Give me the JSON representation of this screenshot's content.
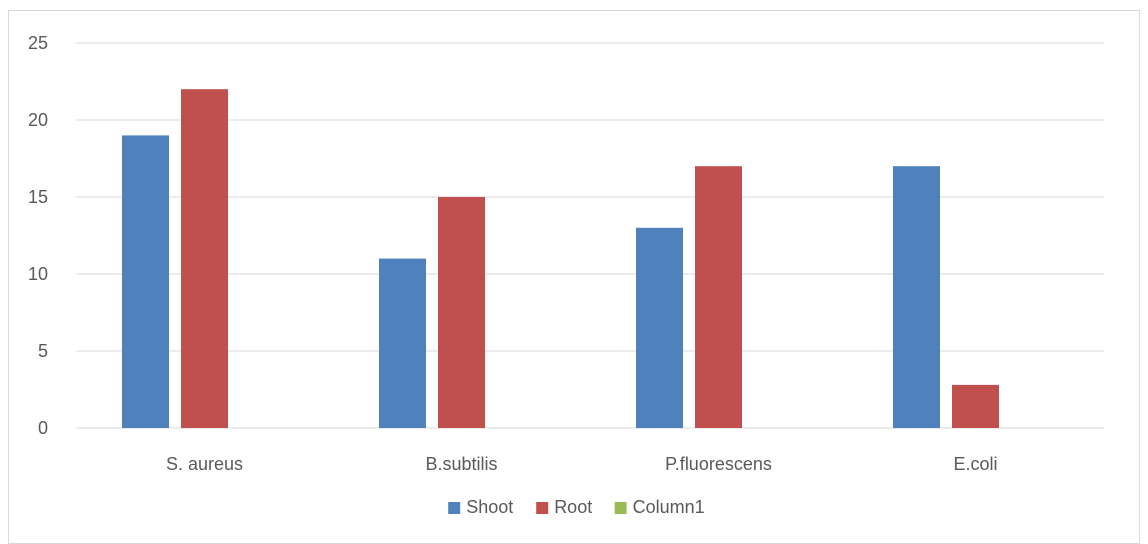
{
  "chart_data": {
    "type": "bar",
    "categories": [
      "S. aureus",
      "B.subtilis",
      "P.fluorescens",
      "E.coli"
    ],
    "series": [
      {
        "name": "Shoot",
        "color": "#4f81bd",
        "values": [
          19,
          11,
          13,
          17
        ]
      },
      {
        "name": "Root",
        "color": "#c0504d",
        "values": [
          22,
          15,
          17,
          2.8
        ]
      },
      {
        "name": "Column1",
        "color": "#9bbb59",
        "values": [
          0,
          0,
          0,
          0
        ]
      }
    ],
    "ylim": [
      0,
      25
    ],
    "yticks": [
      "0",
      "5",
      "10",
      "15",
      "20",
      "25"
    ],
    "grid": true,
    "legend": "bottom",
    "title": "",
    "xlabel": "",
    "ylabel": ""
  }
}
